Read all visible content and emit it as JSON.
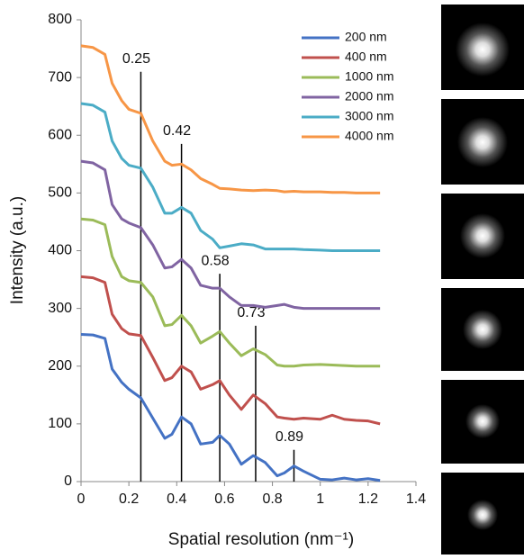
{
  "chart_data": {
    "type": "line",
    "x_label": "Spatial resolution (nm⁻¹)",
    "y_label": "Intensity (a.u.)",
    "x": [
      0,
      0.05,
      0.1,
      0.13,
      0.17,
      0.2,
      0.25,
      0.3,
      0.35,
      0.38,
      0.42,
      0.46,
      0.5,
      0.55,
      0.58,
      0.62,
      0.67,
      0.72,
      0.77,
      0.82,
      0.85,
      0.89,
      0.93,
      1.0,
      1.05,
      1.1,
      1.15,
      1.2,
      1.25
    ],
    "series": [
      {
        "name": "200 nm",
        "color": "#4472c4",
        "values": [
          255,
          254,
          248,
          195,
          172,
          160,
          145,
          110,
          75,
          82,
          112,
          100,
          65,
          68,
          80,
          65,
          30,
          45,
          33,
          10,
          15,
          27,
          18,
          4,
          3,
          6,
          3,
          5,
          2
        ]
      },
      {
        "name": "400 nm",
        "color": "#c0504d",
        "values": [
          355,
          353,
          345,
          290,
          265,
          256,
          253,
          215,
          175,
          180,
          200,
          190,
          160,
          168,
          175,
          150,
          125,
          150,
          135,
          112,
          110,
          108,
          110,
          108,
          115,
          108,
          106,
          105,
          100
        ]
      },
      {
        "name": "1000 nm",
        "color": "#9bbb59",
        "values": [
          455,
          453,
          445,
          390,
          355,
          348,
          345,
          320,
          270,
          272,
          288,
          270,
          240,
          252,
          260,
          240,
          218,
          230,
          220,
          202,
          200,
          200,
          202,
          203,
          202,
          201,
          200,
          200,
          200
        ]
      },
      {
        "name": "2000 nm",
        "color": "#8064a2",
        "values": [
          555,
          552,
          540,
          480,
          455,
          448,
          440,
          410,
          370,
          372,
          385,
          370,
          340,
          335,
          335,
          320,
          305,
          305,
          302,
          305,
          307,
          302,
          300,
          300,
          300,
          300,
          300,
          300,
          300
        ]
      },
      {
        "name": "3000 nm",
        "color": "#4bacc6",
        "values": [
          655,
          652,
          640,
          590,
          560,
          548,
          543,
          510,
          465,
          465,
          475,
          465,
          435,
          420,
          405,
          408,
          412,
          410,
          403,
          403,
          403,
          403,
          402,
          401,
          400,
          400,
          400,
          400,
          400
        ]
      },
      {
        "name": "4000 nm",
        "color": "#f79646",
        "values": [
          755,
          752,
          740,
          690,
          660,
          645,
          638,
          590,
          555,
          548,
          550,
          540,
          525,
          515,
          508,
          507,
          505,
          504,
          505,
          504,
          502,
          503,
          502,
          502,
          501,
          501,
          500,
          500,
          500
        ]
      }
    ],
    "annotations": [
      {
        "x": 0.25,
        "y": 710
      },
      {
        "x": 0.42,
        "y": 585
      },
      {
        "x": 0.58,
        "y": 360
      },
      {
        "x": 0.73,
        "y": 270
      },
      {
        "x": 0.89,
        "y": 55
      }
    ],
    "xlim": [
      0,
      1.4
    ],
    "xticks": [
      0,
      0.2,
      0.4,
      0.6,
      0.8,
      1,
      1.2,
      1.4
    ],
    "ylim": [
      0,
      800
    ],
    "yticks": [
      0,
      100,
      200,
      300,
      400,
      500,
      600,
      700,
      800
    ],
    "grid": false,
    "legend": "upper right"
  }
}
